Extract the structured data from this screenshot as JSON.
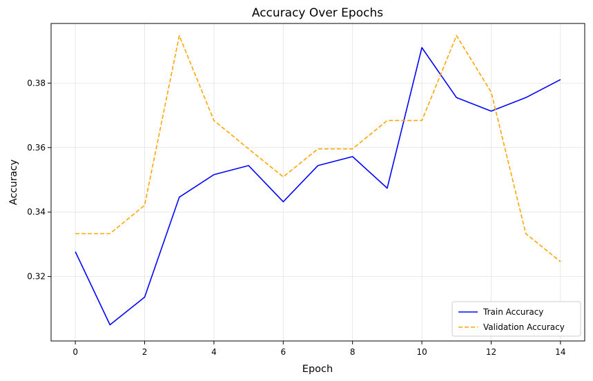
{
  "chart_data": {
    "type": "line",
    "title": "Accuracy Over Epochs",
    "xlabel": "Epoch",
    "ylabel": "Accuracy",
    "xlim": [
      -0.7,
      14.7
    ],
    "ylim": [
      0.3,
      0.3985
    ],
    "xticks": [
      0,
      2,
      4,
      6,
      8,
      10,
      12,
      14
    ],
    "xtick_labels": [
      "0",
      "2",
      "4",
      "6",
      "8",
      "10",
      "12",
      "14"
    ],
    "yticks": [
      0.32,
      0.34,
      0.36,
      0.38
    ],
    "ytick_labels": [
      "0.32",
      "0.34",
      "0.36",
      "0.38"
    ],
    "grid": true,
    "legend_position": "lower-right",
    "x": [
      0,
      1,
      2,
      3,
      4,
      5,
      6,
      7,
      8,
      9,
      10,
      11,
      12,
      13,
      14
    ],
    "series": [
      {
        "name": "Train Accuracy",
        "color": "#0000ff",
        "dash": "solid",
        "values": [
          0.3277,
          0.305,
          0.3136,
          0.3446,
          0.3516,
          0.3544,
          0.3432,
          0.3544,
          0.3572,
          0.3474,
          0.391,
          0.3755,
          0.3713,
          0.3755,
          0.3811
        ]
      },
      {
        "name": "Validation Accuracy",
        "color": "#ffa500",
        "dash": "dashed",
        "values": [
          0.3333,
          0.3333,
          0.3421,
          0.3947,
          0.3684,
          0.3596,
          0.3509,
          0.3596,
          0.3596,
          0.3684,
          0.3684,
          0.3947,
          0.3772,
          0.3333,
          0.3246
        ]
      }
    ]
  }
}
